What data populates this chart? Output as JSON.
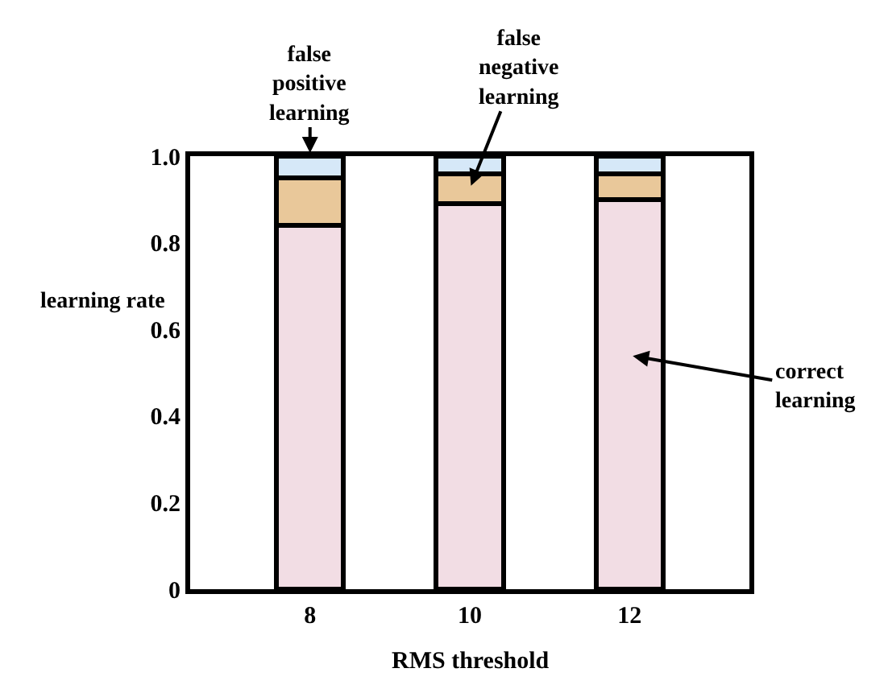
{
  "chart_data": {
    "type": "bar",
    "stacked": true,
    "xlabel": "RMS threshold",
    "ylabel": "learning rate",
    "categories": [
      "8",
      "10",
      "12"
    ],
    "series": [
      {
        "name": "correct learning",
        "color": "#f2dde4",
        "values": [
          0.84,
          0.89,
          0.9
        ]
      },
      {
        "name": "false negative learning",
        "color": "#e9c89a",
        "values": [
          0.11,
          0.07,
          0.06
        ]
      },
      {
        "name": "false positive learning",
        "color": "#d6e8f8",
        "values": [
          0.05,
          0.04,
          0.04
        ]
      }
    ],
    "ylim": [
      0,
      1.0
    ],
    "yticks": [
      0,
      0.2,
      0.4,
      0.6,
      0.8,
      {
        "value": 1,
        "label": "1.0"
      }
    ],
    "legend": false
  }
}
